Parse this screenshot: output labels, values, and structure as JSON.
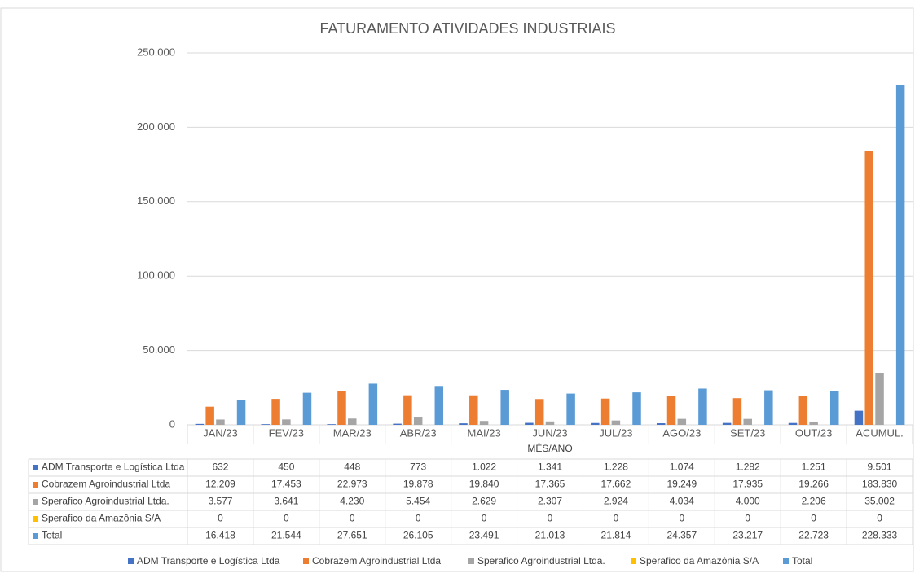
{
  "chart_data": {
    "type": "bar",
    "title": "FATURAMENTO ATIVIDADES INDUSTRIAIS",
    "x_label": "MÊS/ANO",
    "categories": [
      "JAN/23",
      "FEV/23",
      "MAR/23",
      "ABR/23",
      "MAI/23",
      "JUN/23",
      "JUL/23",
      "AGO/23",
      "SET/23",
      "OUT/23",
      "ACUMUL."
    ],
    "series": [
      {
        "name": "ADM Transporte e Logística Ltda",
        "color": "#4472c4",
        "values": [
          632,
          450,
          448,
          773,
          1022,
          1341,
          1228,
          1074,
          1282,
          1251,
          9501
        ],
        "value_labels": [
          "632",
          "450",
          "448",
          "773",
          "1.022",
          "1.341",
          "1.228",
          "1.074",
          "1.282",
          "1.251",
          "9.501"
        ]
      },
      {
        "name": "Cobrazem Agroindustrial Ltda",
        "color": "#ed7d31",
        "values": [
          12209,
          17453,
          22973,
          19878,
          19840,
          17365,
          17662,
          19249,
          17935,
          19266,
          183830
        ],
        "value_labels": [
          "12.209",
          "17.453",
          "22.973",
          "19.878",
          "19.840",
          "17.365",
          "17.662",
          "19.249",
          "17.935",
          "19.266",
          "183.830"
        ]
      },
      {
        "name": "Sperafico Agroindustrial Ltda.",
        "color": "#a5a5a5",
        "values": [
          3577,
          3641,
          4230,
          5454,
          2629,
          2307,
          2924,
          4034,
          4000,
          2206,
          35002
        ],
        "value_labels": [
          "3.577",
          "3.641",
          "4.230",
          "5.454",
          "2.629",
          "2.307",
          "2.924",
          "4.034",
          "4.000",
          "2.206",
          "35.002"
        ]
      },
      {
        "name": "Sperafico da Amazônia S/A",
        "color": "#ffc000",
        "values": [
          0,
          0,
          0,
          0,
          0,
          0,
          0,
          0,
          0,
          0,
          0
        ],
        "value_labels": [
          "0",
          "0",
          "0",
          "0",
          "0",
          "0",
          "0",
          "0",
          "0",
          "0",
          "0"
        ]
      },
      {
        "name": "Total",
        "color": "#5b9bd5",
        "values": [
          16418,
          21544,
          27651,
          26105,
          23491,
          21013,
          21814,
          24357,
          23217,
          22723,
          228333
        ],
        "value_labels": [
          "16.418",
          "21.544",
          "27.651",
          "26.105",
          "23.491",
          "21.013",
          "21.814",
          "24.357",
          "23.217",
          "22.723",
          "228.333"
        ]
      }
    ],
    "ylim": [
      0,
      250000
    ],
    "yticks": [
      0,
      {
        "value": 50000,
        "label": "50.000"
      },
      {
        "value": 100000,
        "label": "100.000"
      },
      {
        "value": 150000,
        "label": "150.000"
      },
      {
        "value": 200000,
        "label": "200.000"
      },
      {
        "value": 250000,
        "label": "250.000"
      }
    ],
    "grid": true
  }
}
